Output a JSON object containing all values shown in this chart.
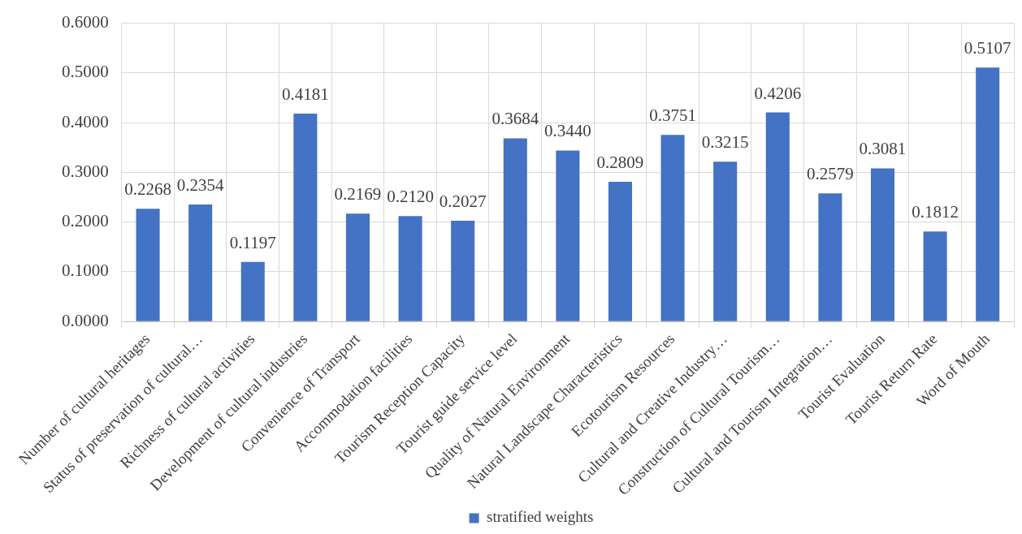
{
  "chart_data": {
    "type": "bar",
    "categories": [
      "Number of cultural heritages",
      "Status of preservation of cultural…",
      "Richness of cultural activities",
      "Development of cultural industries",
      "Convenience of Transport",
      "Accommodation facilities",
      "Tourism Reception Capacity",
      "Tourist guide service level",
      "Quality of Natural Environment",
      "Natural Landscape Characteristics",
      "Ecotourism Resources",
      "Cultural and Creative Industry…",
      "Construction of Cultural Tourism…",
      "Cultural and Tourism Integration…",
      "Tourist Evaluation",
      "Tourist Return Rate",
      "Word of Mouth"
    ],
    "series": [
      {
        "name": "stratified weights",
        "color": "#4472c4",
        "values": [
          0.2268,
          0.2354,
          0.1197,
          0.4181,
          0.2169,
          0.212,
          0.2027,
          0.3684,
          0.344,
          0.2809,
          0.3751,
          0.3215,
          0.4206,
          0.2579,
          0.3081,
          0.1812,
          0.5107
        ],
        "value_labels": [
          "0.2268",
          "0.2354",
          "0.1197",
          "0.4181",
          "0.2169",
          "0.2120",
          "0.2027",
          "0.3684",
          "0.3440",
          "0.2809",
          "0.3751",
          "0.3215",
          "0.4206",
          "0.2579",
          "0.3081",
          "0.1812",
          "0.5107"
        ]
      }
    ],
    "ylim": [
      0,
      0.6
    ],
    "yticks": [
      {
        "value": 0,
        "label": "0.0000"
      },
      {
        "value": 0.1,
        "label": "0.1000"
      },
      {
        "value": 0.2,
        "label": "0.2000"
      },
      {
        "value": 0.3,
        "label": "0.3000"
      },
      {
        "value": 0.4,
        "label": "0.4000"
      },
      {
        "value": 0.5,
        "label": "0.5000"
      },
      {
        "value": 0.6,
        "label": "0.6000"
      }
    ],
    "grid": true,
    "legend": "bottom"
  }
}
